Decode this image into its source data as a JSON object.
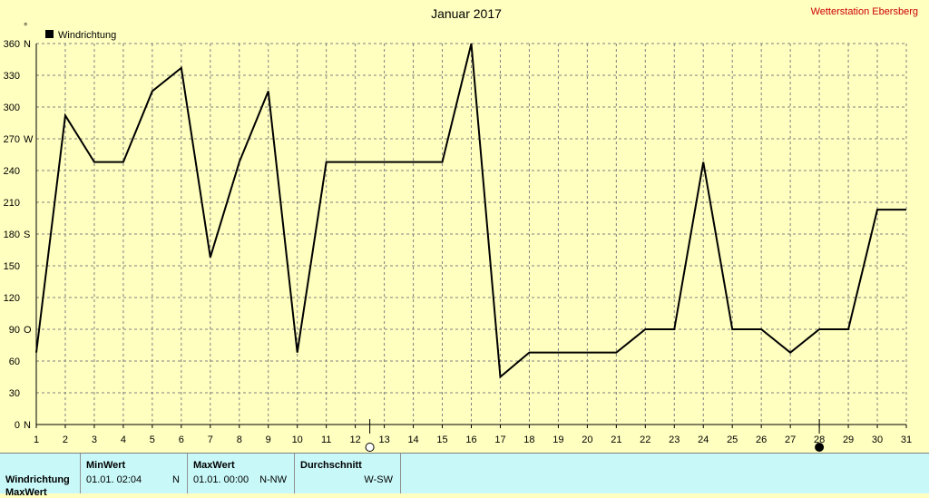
{
  "header": {
    "title": "Januar 2017",
    "station": "Wetterstation Ebersberg",
    "unit_mark": "°"
  },
  "legend": {
    "label": "Windrichtung",
    "color": "#000000"
  },
  "chart_data": {
    "type": "line",
    "title": "Januar 2017",
    "xlabel": "",
    "ylabel": "",
    "x": [
      1,
      2,
      3,
      4,
      5,
      6,
      7,
      8,
      9,
      10,
      11,
      12,
      13,
      14,
      15,
      16,
      17,
      18,
      19,
      20,
      21,
      22,
      23,
      24,
      25,
      26,
      27,
      28,
      29,
      30,
      31
    ],
    "xlim": [
      1,
      31
    ],
    "ylim": [
      0,
      360
    ],
    "y_ticks": [
      {
        "value": 0,
        "label": "0"
      },
      {
        "value": 30,
        "label": "30"
      },
      {
        "value": 60,
        "label": "60"
      },
      {
        "value": 90,
        "label": "90"
      },
      {
        "value": 120,
        "label": "120"
      },
      {
        "value": 150,
        "label": "150"
      },
      {
        "value": 180,
        "label": "180"
      },
      {
        "value": 210,
        "label": "210"
      },
      {
        "value": 240,
        "label": "240"
      },
      {
        "value": 270,
        "label": "270"
      },
      {
        "value": 300,
        "label": "300"
      },
      {
        "value": 330,
        "label": "330"
      },
      {
        "value": 360,
        "label": "360"
      }
    ],
    "compass_ticks": [
      {
        "value": 0,
        "label": "N"
      },
      {
        "value": 90,
        "label": "O"
      },
      {
        "value": 180,
        "label": "S"
      },
      {
        "value": 270,
        "label": "W"
      },
      {
        "value": 360,
        "label": "N"
      }
    ],
    "grid": true,
    "legend_position": "top-left",
    "series": [
      {
        "name": "Windrichtung",
        "color": "#000000",
        "points": [
          [
            1,
            68
          ],
          [
            2,
            292
          ],
          [
            3,
            248
          ],
          [
            4,
            248
          ],
          [
            5,
            315
          ],
          [
            6,
            337
          ],
          [
            7,
            158
          ],
          [
            8,
            248
          ],
          [
            9,
            315
          ],
          [
            10,
            68
          ],
          [
            11,
            248
          ],
          [
            12,
            248
          ],
          [
            13,
            248
          ],
          [
            14,
            248
          ],
          [
            15,
            248
          ],
          [
            16,
            360
          ],
          [
            17,
            45
          ],
          [
            18,
            68
          ],
          [
            19,
            68
          ],
          [
            20,
            68
          ],
          [
            21,
            68
          ],
          [
            22,
            90
          ],
          [
            23,
            90
          ],
          [
            24,
            248
          ],
          [
            25,
            90
          ],
          [
            26,
            90
          ],
          [
            27,
            68
          ],
          [
            28,
            90
          ],
          [
            29,
            90
          ],
          [
            30,
            203
          ],
          [
            31,
            203
          ]
        ]
      }
    ],
    "moon_markers": [
      {
        "day": 12.5,
        "phase": "full-moon",
        "color": "#ffffff"
      },
      {
        "day": 28,
        "phase": "new-moon",
        "color": "#000000"
      }
    ]
  },
  "stats": {
    "row_label": "Windrichtung",
    "row_label_2": "MaxWert",
    "min": {
      "header": "MinWert",
      "time": "01.01.  02:04",
      "direction": "N"
    },
    "max": {
      "header": "MaxWert",
      "time": "01.01.  00:00",
      "direction": "N-NW"
    },
    "avg": {
      "header": "Durchschnitt",
      "direction": "W-SW"
    }
  }
}
